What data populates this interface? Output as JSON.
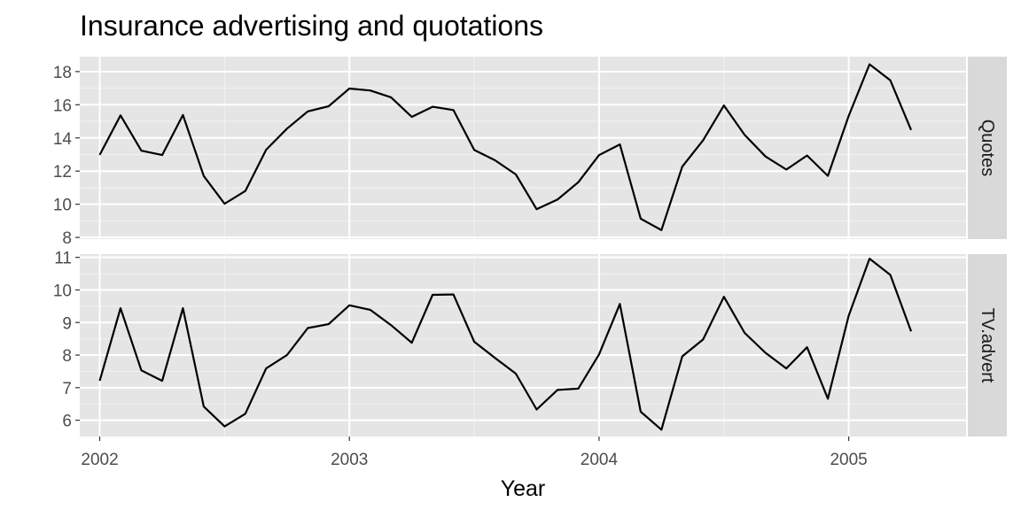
{
  "chart_data": {
    "type": "line",
    "title": "Insurance advertising and quotations",
    "xlabel": "Year",
    "ylabel": "",
    "xlim": [
      2001.92,
      2005.47
    ],
    "x_ticks": [
      2002,
      2003,
      2004,
      2005
    ],
    "x_tick_labels": [
      "2002",
      "2003",
      "2004",
      "2005"
    ],
    "x": [
      2002.0,
      2002.0833,
      2002.1667,
      2002.25,
      2002.3333,
      2002.4167,
      2002.5,
      2002.5833,
      2002.6667,
      2002.75,
      2002.8333,
      2002.9167,
      2003.0,
      2003.0833,
      2003.1667,
      2003.25,
      2003.3333,
      2003.4167,
      2003.5,
      2003.5833,
      2003.6667,
      2003.75,
      2003.8333,
      2003.9167,
      2004.0,
      2004.0833,
      2004.1667,
      2004.25,
      2004.3333,
      2004.4167,
      2004.5,
      2004.5833,
      2004.6667,
      2004.75,
      2004.8333,
      2004.9167,
      2005.0,
      2005.0833,
      2005.1667,
      2005.25
    ],
    "facets": [
      {
        "name": "Quotes",
        "ylim": [
          7.9,
          18.9
        ],
        "y_ticks": [
          8,
          10,
          12,
          14,
          16,
          18
        ],
        "y_tick_labels": [
          "8",
          "10",
          "12",
          "14",
          "16",
          "18"
        ],
        "values": [
          12.98,
          15.36,
          13.23,
          12.97,
          15.38,
          11.7,
          10.03,
          10.8,
          13.29,
          14.56,
          15.6,
          15.91,
          16.98,
          16.86,
          16.45,
          15.27,
          15.88,
          15.68,
          13.27,
          12.65,
          11.8,
          9.7,
          10.28,
          11.33,
          12.96,
          13.61,
          9.13,
          8.44,
          12.27,
          13.86,
          15.96,
          14.18,
          12.88,
          12.09,
          12.94,
          11.71,
          15.33,
          18.44,
          17.47,
          14.48
        ]
      },
      {
        "name": "TV.advert",
        "ylim": [
          5.5,
          11.1
        ],
        "y_ticks": [
          6,
          7,
          8,
          9,
          10,
          11
        ],
        "y_tick_labels": [
          "6",
          "7",
          "8",
          "9",
          "10",
          "11"
        ],
        "values": [
          7.21,
          9.44,
          7.53,
          7.21,
          9.44,
          6.42,
          5.81,
          6.2,
          7.59,
          8.0,
          8.83,
          8.95,
          9.53,
          9.39,
          8.92,
          8.38,
          9.85,
          9.86,
          8.41,
          7.91,
          7.43,
          6.33,
          6.93,
          6.97,
          8.02,
          9.57,
          6.26,
          5.71,
          7.96,
          8.48,
          9.79,
          8.68,
          8.07,
          7.59,
          8.24,
          6.66,
          9.21,
          10.96,
          10.46,
          8.73
        ]
      }
    ],
    "grid": true,
    "legend": "none",
    "colors": {
      "panel_background": "#e5e5e5",
      "grid_major": "#ffffff",
      "grid_minor": "#f2f2f2",
      "strip_background": "#d9d9d9",
      "line": "#000000"
    }
  }
}
